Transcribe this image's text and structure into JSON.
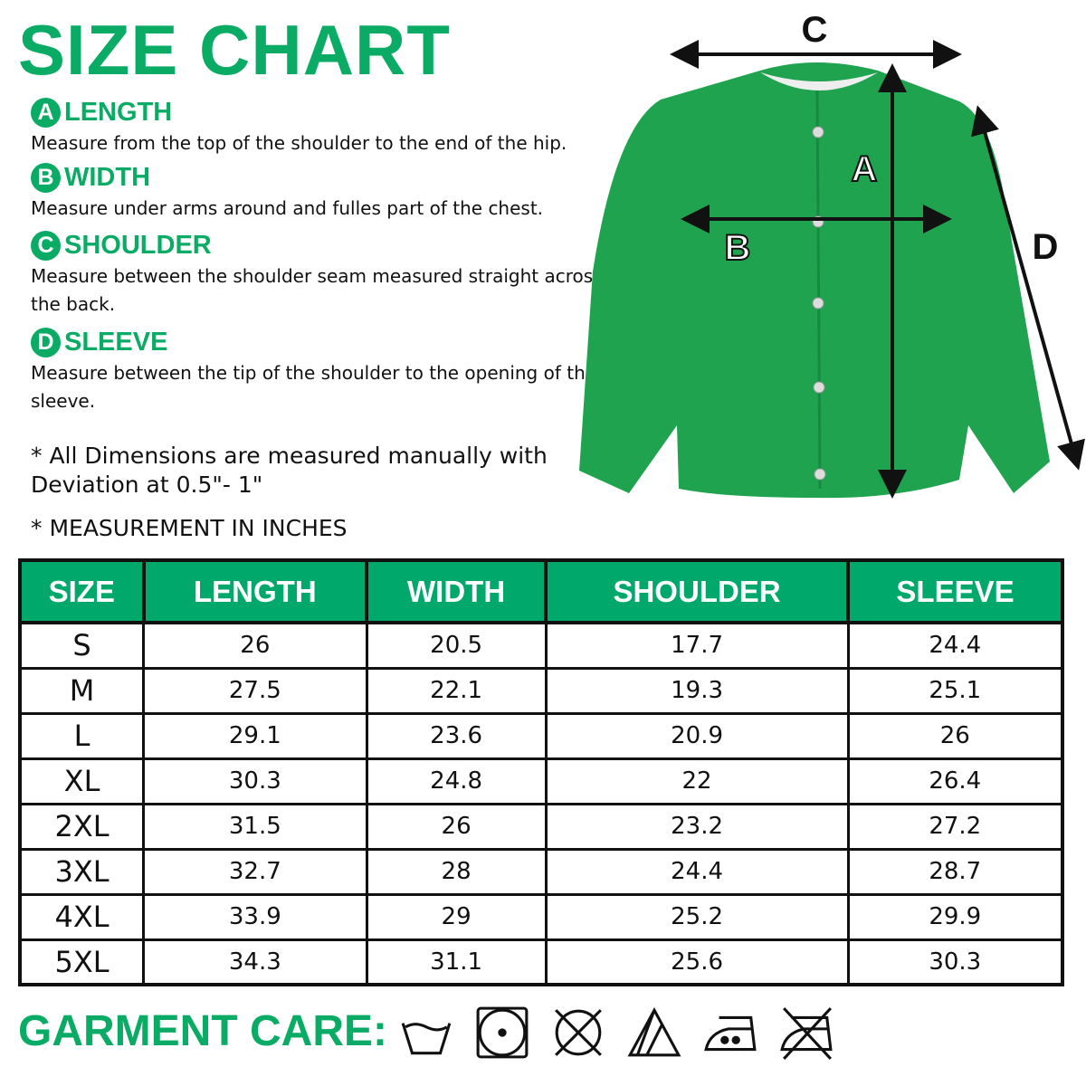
{
  "title": "SIZE CHART",
  "definitions": [
    {
      "letter": "A",
      "label": "LENGTH",
      "desc": "Measure from the top of the shoulder to the end of the hip."
    },
    {
      "letter": "B",
      "label": "WIDTH",
      "desc": "Measure under arms around and fulles part of the chest."
    },
    {
      "letter": "C",
      "label": "SHOULDER",
      "desc": "Measure between the shoulder seam measured straight across the back."
    },
    {
      "letter": "D",
      "label": "SLEEVE",
      "desc": "Measure between the tip of the shoulder to the opening of the sleeve."
    }
  ],
  "notes": [
    "* All Dimensions are measured manually with Deviation at 0.5\"- 1\"",
    "* MEASUREMENT IN INCHES"
  ],
  "diagram_labels": {
    "a": "A",
    "b": "B",
    "c": "C",
    "d": "D"
  },
  "table": {
    "headers": [
      "SIZE",
      "LENGTH",
      "WIDTH",
      "SHOULDER",
      "SLEEVE"
    ],
    "rows": [
      [
        "S",
        "26",
        "20.5",
        "17.7",
        "24.4"
      ],
      [
        "M",
        "27.5",
        "22.1",
        "19.3",
        "25.1"
      ],
      [
        "L",
        "29.1",
        "23.6",
        "20.9",
        "26"
      ],
      [
        "XL",
        "30.3",
        "24.8",
        "22",
        "26.4"
      ],
      [
        "2XL",
        "31.5",
        "26",
        "23.2",
        "27.2"
      ],
      [
        "3XL",
        "32.7",
        "28",
        "24.4",
        "28.7"
      ],
      [
        "4XL",
        "33.9",
        "29",
        "25.2",
        "29.9"
      ],
      [
        "5XL",
        "34.3",
        "31.1",
        "25.6",
        "30.3"
      ]
    ]
  },
  "care": {
    "label": "GARMENT CARE:",
    "icons": [
      "hand-wash-icon",
      "tumble-dry-icon",
      "do-not-dry-clean-icon",
      "bleach-icon",
      "iron-medium-icon",
      "do-not-iron-icon"
    ]
  },
  "colors": {
    "accent": "#0aab64",
    "header": "#00a96b",
    "garment": "#1fa34f"
  }
}
